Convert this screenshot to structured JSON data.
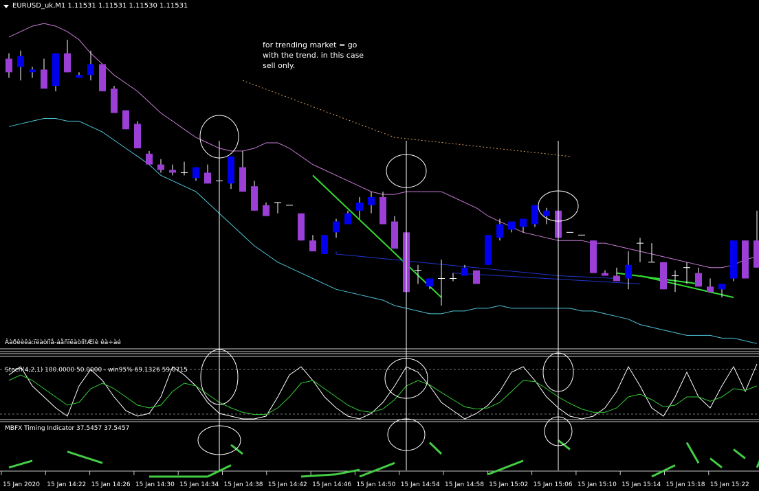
{
  "header": {
    "title": "EURUSD_uk,M1  1.11531 1.11531 1.11530 1.11531"
  },
  "annotation": {
    "text": "for trending market =  go with the trend. in this case sell only."
  },
  "indicator_labels": {
    "garbled": "Äàðêèêà:ïëàòíîå-áåñïëàòíî!Æìè êà÷àé",
    "stoch": "Stoch(4,2,1) 100.0000 50.0000 - win95% 69.1326 59.0715",
    "mbfx": "MBFX Timing Indicator 37.5457 37.5457"
  },
  "colors": {
    "background": "#000000",
    "bull_candle": "#0000ee",
    "bear_candle": "#9b3fd6",
    "upper_band": "#c77ad6",
    "lower_band": "#4fc3d9",
    "trend_line": "#33dd33",
    "blue_line": "#2233cc",
    "dotted_line": "#d9a060",
    "markup": "#ffffff"
  },
  "chart_data": {
    "type": "candlestick",
    "symbol": "EURUSD_uk",
    "timeframe": "M1",
    "time_axis": [
      "15 Jan 2020",
      "15 Jan 14:22",
      "15 Jan 14:26",
      "15 Jan 14:30",
      "15 Jan 14:34",
      "15 Jan 14:38",
      "15 Jan 14:42",
      "15 Jan 14:46",
      "15 Jan 14:50",
      "15 Jan 14:54",
      "15 Jan 14:58",
      "15 Jan 15:02",
      "15 Jan 15:06",
      "15 Jan 15:10",
      "15 Jan 15:14",
      "15 Jan 15:18",
      "15 Jan 15:22"
    ],
    "price_range": [
      0,
      100
    ],
    "candles": [
      {
        "o": 91,
        "h": 93,
        "l": 84,
        "c": 86
      },
      {
        "o": 88,
        "h": 94,
        "l": 83,
        "c": 92
      },
      {
        "o": 86,
        "h": 88,
        "l": 84,
        "c": 87
      },
      {
        "o": 87,
        "h": 91,
        "l": 80,
        "c": 80
      },
      {
        "o": 81,
        "h": 93,
        "l": 79,
        "c": 93
      },
      {
        "o": 93,
        "h": 98,
        "l": 86,
        "c": 86
      },
      {
        "o": 84,
        "h": 86,
        "l": 84,
        "c": 85
      },
      {
        "o": 85,
        "h": 94,
        "l": 83,
        "c": 89
      },
      {
        "o": 89,
        "h": 89,
        "l": 79,
        "c": 79
      },
      {
        "o": 80,
        "h": 81,
        "l": 71,
        "c": 71
      },
      {
        "o": 72,
        "h": 72,
        "l": 65,
        "c": 65
      },
      {
        "o": 67,
        "h": 68,
        "l": 58,
        "c": 58
      },
      {
        "o": 56,
        "h": 57,
        "l": 52,
        "c": 52
      },
      {
        "o": 52,
        "h": 54,
        "l": 49,
        "c": 50
      },
      {
        "o": 50,
        "h": 52,
        "l": 48,
        "c": 49
      },
      {
        "o": 49,
        "h": 53,
        "l": 48,
        "c": 49
      },
      {
        "o": 47,
        "h": 51,
        "l": 46,
        "c": 51
      },
      {
        "o": 49,
        "h": 52,
        "l": 45,
        "c": 45
      },
      {
        "o": 46,
        "h": 47,
        "l": 45,
        "c": 46
      },
      {
        "o": 45,
        "h": 55,
        "l": 43,
        "c": 55
      },
      {
        "o": 51,
        "h": 57,
        "l": 42,
        "c": 42
      },
      {
        "o": 44,
        "h": 46,
        "l": 35,
        "c": 35
      },
      {
        "o": 37,
        "h": 38,
        "l": 33,
        "c": 33
      },
      {
        "o": 38,
        "h": 38,
        "l": 34,
        "c": 38
      },
      {
        "o": 37,
        "h": 37,
        "l": 37,
        "c": 37
      },
      {
        "o": 34,
        "h": 34,
        "l": 24,
        "c": 24
      },
      {
        "o": 24,
        "h": 26,
        "l": 20,
        "c": 20
      },
      {
        "o": 19,
        "h": 26,
        "l": 19,
        "c": 26
      },
      {
        "o": 27,
        "h": 32,
        "l": 25,
        "c": 31
      },
      {
        "o": 30,
        "h": 35,
        "l": 30,
        "c": 34
      },
      {
        "o": 35,
        "h": 40,
        "l": 32,
        "c": 38
      },
      {
        "o": 37,
        "h": 42,
        "l": 34,
        "c": 40
      },
      {
        "o": 40,
        "h": 42,
        "l": 30,
        "c": 30
      },
      {
        "o": 31,
        "h": 33,
        "l": 21,
        "c": 21
      },
      {
        "o": 27,
        "h": 29,
        "l": 5,
        "c": 5
      },
      {
        "o": 13,
        "h": 15,
        "l": 8,
        "c": 13
      },
      {
        "o": 7,
        "h": 10,
        "l": 6,
        "c": 10
      },
      {
        "o": 10,
        "h": 17,
        "l": 0,
        "c": 10
      },
      {
        "o": 10,
        "h": 12,
        "l": 9,
        "c": 10
      },
      {
        "o": 11,
        "h": 15,
        "l": 11,
        "c": 14
      },
      {
        "o": 13,
        "h": 13,
        "l": 8,
        "c": 8
      },
      {
        "o": 15,
        "h": 26,
        "l": 15,
        "c": 26
      },
      {
        "o": 25,
        "h": 32,
        "l": 24,
        "c": 30
      },
      {
        "o": 28,
        "h": 31,
        "l": 27,
        "c": 31
      },
      {
        "o": 29,
        "h": 32,
        "l": 27,
        "c": 32
      },
      {
        "o": 30,
        "h": 37,
        "l": 29,
        "c": 37
      },
      {
        "o": 33,
        "h": 36,
        "l": 30,
        "c": 35
      },
      {
        "o": 35,
        "h": 35,
        "l": 25,
        "c": 25
      },
      {
        "o": 27,
        "h": 27,
        "l": 27,
        "c": 27
      },
      {
        "o": 26,
        "h": 26,
        "l": 26,
        "c": 26
      },
      {
        "o": 24,
        "h": 24,
        "l": 12,
        "c": 12
      },
      {
        "o": 12,
        "h": 13,
        "l": 11,
        "c": 11
      },
      {
        "o": 11,
        "h": 14,
        "l": 9,
        "c": 9
      },
      {
        "o": 10,
        "h": 20,
        "l": 6,
        "c": 15
      },
      {
        "o": 23,
        "h": 25,
        "l": 16,
        "c": 23
      },
      {
        "o": 16,
        "h": 23,
        "l": 16,
        "c": 16
      },
      {
        "o": 16,
        "h": 16,
        "l": 6,
        "c": 6
      },
      {
        "o": 11,
        "h": 13,
        "l": 5,
        "c": 11
      },
      {
        "o": 14,
        "h": 16,
        "l": 8,
        "c": 14
      },
      {
        "o": 12,
        "h": 14,
        "l": 7,
        "c": 7
      },
      {
        "o": 7,
        "h": 10,
        "l": 5,
        "c": 5
      },
      {
        "o": 6,
        "h": 8,
        "l": 3,
        "c": 8
      },
      {
        "o": 10,
        "h": 24,
        "l": 9,
        "c": 24
      },
      {
        "o": 24,
        "h": 24,
        "l": 10,
        "c": 10
      },
      {
        "o": 24,
        "h": 35,
        "l": 14,
        "c": 14
      }
    ],
    "upper_band": [
      99,
      101,
      103,
      104,
      103,
      101,
      98,
      93,
      89,
      85,
      82,
      79,
      75,
      71,
      68,
      65,
      62,
      60,
      58,
      57,
      57,
      58,
      60,
      60,
      58,
      55,
      52,
      50,
      48,
      46,
      44,
      42,
      41,
      41,
      42,
      42,
      42,
      42,
      40,
      38,
      36,
      33,
      31,
      29,
      27,
      26,
      25,
      24,
      24,
      24,
      23,
      23,
      22,
      21,
      20,
      19,
      18,
      17,
      16,
      15,
      14,
      14,
      15,
      17,
      18
    ],
    "lower_band": [
      66,
      67,
      68,
      69,
      69,
      68,
      68,
      66,
      64,
      61,
      58,
      55,
      52,
      48,
      46,
      44,
      42,
      38,
      34,
      30,
      26,
      22,
      19,
      16,
      14,
      12,
      10,
      8,
      6,
      5,
      4,
      3,
      2,
      0,
      -1,
      -2,
      -3,
      -3,
      -2,
      -2,
      -1,
      -1,
      0,
      -1,
      -1,
      -1,
      -1,
      -1,
      -1,
      -2,
      -2,
      -3,
      -4,
      -5,
      -7,
      -8,
      -9,
      -10,
      -11,
      -11,
      -11,
      -12,
      -12,
      -13,
      -14
    ],
    "stochastic": {
      "label": "Stoch(4,2,1) 100.0000 50.0000 - win95% 69.1326 59.0715",
      "main": [
        80,
        95,
        60,
        40,
        20,
        5,
        60,
        90,
        70,
        40,
        15,
        5,
        10,
        40,
        95,
        80,
        60,
        30,
        10,
        5,
        0,
        0,
        5,
        40,
        80,
        95,
        70,
        40,
        20,
        5,
        0,
        10,
        30,
        60,
        95,
        85,
        60,
        30,
        15,
        0,
        10,
        25,
        50,
        85,
        95,
        70,
        40,
        20,
        5,
        0,
        5,
        20,
        50,
        95,
        60,
        20,
        5,
        40,
        85,
        40,
        20,
        60,
        95,
        50,
        100
      ],
      "signal": [
        70,
        80,
        70,
        55,
        40,
        25,
        30,
        55,
        65,
        55,
        40,
        25,
        20,
        25,
        50,
        65,
        60,
        45,
        30,
        20,
        12,
        8,
        8,
        20,
        40,
        65,
        70,
        55,
        40,
        25,
        15,
        12,
        18,
        35,
        60,
        70,
        62,
        48,
        35,
        22,
        18,
        20,
        30,
        50,
        70,
        68,
        55,
        40,
        28,
        18,
        12,
        12,
        20,
        40,
        45,
        35,
        22,
        25,
        40,
        40,
        32,
        40,
        55,
        52,
        60
      ]
    },
    "mbfx": {
      "label": "MBFX Timing Indicator 37.5457 37.5457",
      "segments": [
        {
          "from": 0,
          "to": 2,
          "v0": 20,
          "v1": 35
        },
        {
          "from": 5,
          "to": 8,
          "v0": 55,
          "v1": 30
        },
        {
          "from": 12,
          "to": 17,
          "v0": 0,
          "v1": 0
        },
        {
          "from": 17,
          "to": 19,
          "v0": 0,
          "v1": 25
        },
        {
          "from": 19,
          "to": 20,
          "v0": 70,
          "v1": 50
        },
        {
          "from": 25,
          "to": 28,
          "v0": 0,
          "v1": 5
        },
        {
          "from": 28,
          "to": 30,
          "v0": 5,
          "v1": 15
        },
        {
          "from": 30,
          "to": 33,
          "v0": 0,
          "v1": 30
        },
        {
          "from": 36,
          "to": 37,
          "v0": 75,
          "v1": 50
        },
        {
          "from": 41,
          "to": 44,
          "v0": 5,
          "v1": 35
        },
        {
          "from": 47,
          "to": 48,
          "v0": 80,
          "v1": 60
        },
        {
          "from": 55,
          "to": 57,
          "v0": 0,
          "v1": 25
        },
        {
          "from": 58,
          "to": 59,
          "v0": 75,
          "v1": 30
        },
        {
          "from": 60,
          "to": 61,
          "v0": 40,
          "v1": 20
        },
        {
          "from": 62,
          "to": 63,
          "v0": 60,
          "v1": 40
        },
        {
          "from": 64,
          "to": 65,
          "v0": 20,
          "v1": 80
        }
      ]
    }
  }
}
